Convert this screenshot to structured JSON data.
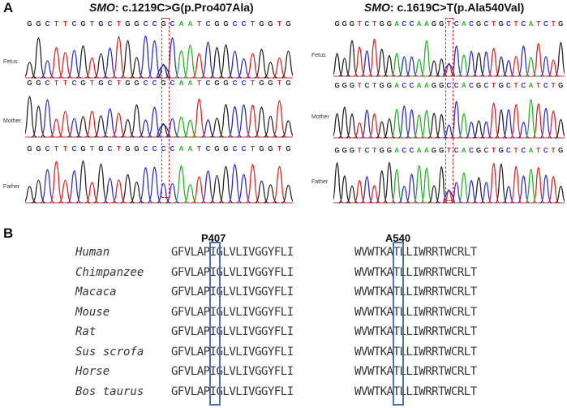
{
  "panelA": {
    "label": "A",
    "left": {
      "gene": "SMO",
      "variant": ": c.1219C>G(p.Pro407Ala)",
      "samples": [
        {
          "name": "Fetus",
          "sequence": "GGCTTCGTGCTGGCCGCAATCGGCCTGGTG"
        },
        {
          "name": "Mother",
          "sequence": "GGCTTCGTGCTGGCCGCAATCGGCCTGGTG"
        },
        {
          "name": "Father",
          "sequence": "GGCTTCGTGCTGGCCCCAATCGGCCTGGTG"
        }
      ]
    },
    "right": {
      "gene": "SMO",
      "variant": ": c.1619C>T(p.Ala540Val)",
      "samples": [
        {
          "name": "Fetus",
          "sequence": "GGGTCTGGACCAAGGTCACGCTGCTCATCTG"
        },
        {
          "name": "Mother",
          "sequence": "GGGTCTGGACCAAGGCCACGCTGCTCATCTG"
        },
        {
          "name": "Father",
          "sequence": "GGGTCTGGACCAAGGTCACGCTGCTCATCTG"
        }
      ]
    }
  },
  "panelB": {
    "label": "B",
    "pos1": "P407",
    "pos2": "A540",
    "rows": [
      {
        "species": "Human",
        "seq1": "GFVLAPIGLVLIVGGYFLI",
        "seq2": "WVWTKATLLIWRRTWCRLT"
      },
      {
        "species": "Chimpanzee",
        "seq1": "GFVLAPIGLVLIVGGYFLI",
        "seq2": "WVWTKATLLIWRRTWCRLT"
      },
      {
        "species": "Macaca",
        "seq1": "GFVLAPIGLVLIVGGYFLI",
        "seq2": "WVWTKATLLIWRRTWCRLT"
      },
      {
        "species": "Mouse",
        "seq1": "GFVLAPIGLVLIVGGYFLI",
        "seq2": "WVWTKATLLIWRRTWCRLT"
      },
      {
        "species": "Rat",
        "seq1": "GFVLAPIGLVLIVGGYFLI",
        "seq2": "WVWTKATLLIWRRTWCRLT"
      },
      {
        "species": "Sus scrofa",
        "seq1": "GFVLAPIGLVLIVGGYFLI",
        "seq2": "WVWTKATLLIWRRTWCRLT"
      },
      {
        "species": "Horse",
        "seq1": "GFVLAPIGLVLIVGGYFLI",
        "seq2": "WVWTKATLLIWRRTWCRLT"
      },
      {
        "species": "Bos taurus",
        "seq1": "GFVLAPIGLVLIVGGYFLI",
        "seq2": "WVWTKATLLIWRRTWCRLT"
      }
    ]
  },
  "colors": {
    "G": "#222222",
    "C": "#2a2ad0",
    "T": "#e02020",
    "A": "#20b020",
    "highlight_red": "#e0201b",
    "highlight_blue": "#4a72b8"
  }
}
